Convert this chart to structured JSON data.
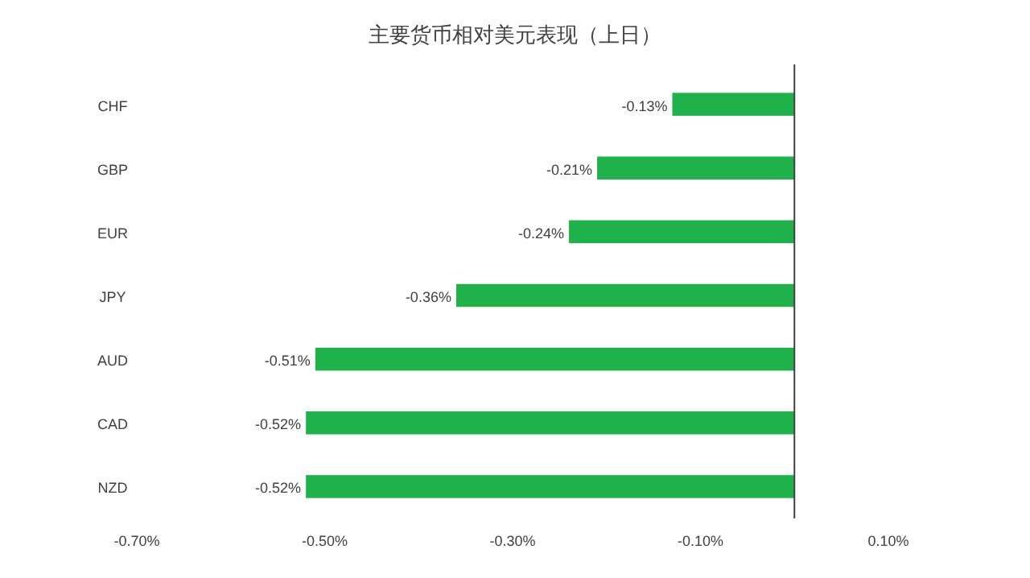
{
  "chart_data": {
    "type": "bar",
    "orientation": "horizontal",
    "title": "主要货币相对美元表现（上日）",
    "categories": [
      "CHF",
      "GBP",
      "EUR",
      "JPY",
      "AUD",
      "CAD",
      "NZD"
    ],
    "values": [
      -0.13,
      -0.21,
      -0.24,
      -0.36,
      -0.51,
      -0.52,
      -0.52
    ],
    "value_labels": [
      "-0.13%",
      "-0.21%",
      "-0.24%",
      "-0.36%",
      "-0.51%",
      "-0.52%",
      "-0.52%"
    ],
    "color": "#1fb24a",
    "xlim": [
      -0.7,
      0.1
    ],
    "xticks": [
      {
        "value": -0.7,
        "label": "-0.70%"
      },
      {
        "value": -0.5,
        "label": "-0.50%"
      },
      {
        "value": -0.3,
        "label": "-0.30%"
      },
      {
        "value": -0.1,
        "label": "-0.10%"
      },
      {
        "value": 0.1,
        "label": "0.10%"
      }
    ]
  }
}
